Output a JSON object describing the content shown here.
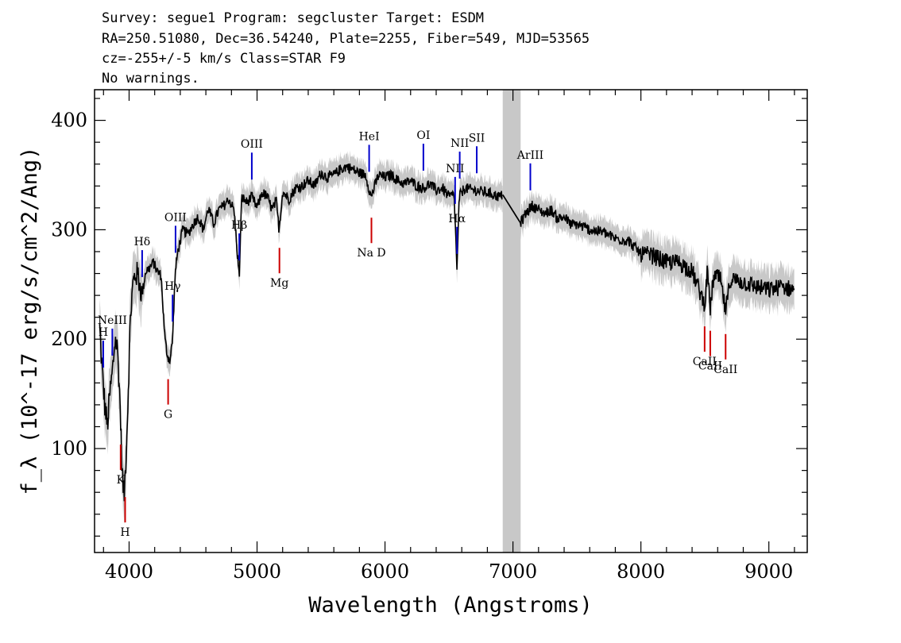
{
  "header": {
    "line1": "Survey: segue1 Program: segcluster Target: ESDM",
    "line2": "RA=250.51080, Dec=36.54240, Plate=2255, Fiber=549, MJD=53565",
    "line3": "cz=-255+/-5 km/s Class=STAR F9",
    "line4": "No warnings."
  },
  "chart_data": {
    "type": "line",
    "xlabel": "Wavelength (Angstroms)",
    "ylabel": "f_λ (10^-17 erg/s/cm^2/Ang)",
    "xlim": [
      3730,
      9300
    ],
    "ylim": [
      5,
      428
    ],
    "x_ticks": [
      4000,
      5000,
      6000,
      7000,
      8000,
      9000
    ],
    "y_ticks": [
      100,
      200,
      300,
      400
    ],
    "masked_region": [
      6920,
      7060
    ],
    "colors": {
      "flux": "#000000",
      "error_band": "#c8c8c8",
      "emission": "#0000cc",
      "absorption": "#cc0000",
      "mask": "#c8c8c8"
    },
    "series": [
      {
        "name": "flux",
        "x": [
          3770,
          3790,
          3810,
          3830,
          3850,
          3870,
          3890,
          3910,
          3930,
          3945,
          3960,
          3975,
          3990,
          4010,
          4030,
          4050,
          4070,
          4101,
          4130,
          4160,
          4190,
          4220,
          4250,
          4280,
          4300,
          4320,
          4340,
          4360,
          4380,
          4420,
          4460,
          4500,
          4540,
          4580,
          4620,
          4660,
          4700,
          4740,
          4780,
          4820,
          4861,
          4880,
          4920,
          4960,
          5000,
          5040,
          5080,
          5120,
          5150,
          5172,
          5200,
          5250,
          5300,
          5350,
          5400,
          5450,
          5500,
          5550,
          5600,
          5650,
          5700,
          5750,
          5800,
          5850,
          5890,
          5950,
          6000,
          6050,
          6100,
          6150,
          6200,
          6250,
          6300,
          6350,
          6400,
          6450,
          6500,
          6540,
          6563,
          6580,
          6620,
          6700,
          6800,
          6900,
          6920,
          7060,
          7100,
          7150,
          7200,
          7250,
          7300,
          7350,
          7400,
          7450,
          7500,
          7600,
          7700,
          7800,
          7900,
          8000,
          8100,
          8200,
          8300,
          8400,
          8498,
          8520,
          8542,
          8570,
          8620,
          8662,
          8700,
          8800,
          8900,
          9000,
          9100,
          9200
        ],
        "values": [
          210,
          170,
          140,
          120,
          150,
          170,
          200,
          190,
          140,
          80,
          55,
          90,
          140,
          220,
          250,
          260,
          258,
          240,
          262,
          265,
          270,
          262,
          258,
          200,
          185,
          180,
          200,
          260,
          280,
          300,
          296,
          305,
          312,
          300,
          320,
          305,
          318,
          322,
          328,
          318,
          256,
          330,
          325,
          330,
          320,
          334,
          330,
          318,
          326,
          300,
          335,
          328,
          338,
          340,
          345,
          340,
          352,
          348,
          350,
          355,
          358,
          355,
          352,
          350,
          330,
          350,
          348,
          350,
          345,
          342,
          345,
          340,
          338,
          342,
          336,
          338,
          330,
          332,
          262,
          330,
          338,
          336,
          334,
          330,
          332,
          306,
          315,
          322,
          318,
          315,
          318,
          310,
          312,
          305,
          305,
          300,
          298,
          292,
          290,
          278,
          276,
          270,
          270,
          262,
          232,
          262,
          228,
          258,
          255,
          225,
          255,
          252,
          248,
          245,
          248,
          245
        ]
      }
    ],
    "annotations": [
      {
        "label": "H",
        "x": 3798,
        "kind": "emission"
      },
      {
        "label": "NeIII",
        "x": 3869,
        "kind": "emission"
      },
      {
        "label": "Hδ",
        "x": 4102,
        "kind": "emission"
      },
      {
        "label": "Hγ",
        "x": 4340,
        "kind": "emission"
      },
      {
        "label": "OIII",
        "x": 4363,
        "kind": "emission"
      },
      {
        "label": "Hβ",
        "x": 4861,
        "kind": "emission"
      },
      {
        "label": "OIII",
        "x": 4959,
        "kind": "emission"
      },
      {
        "label": "HeI",
        "x": 5876,
        "kind": "emission"
      },
      {
        "label": "OI",
        "x": 6300,
        "kind": "emission"
      },
      {
        "label": "NII",
        "x": 6548,
        "kind": "emission"
      },
      {
        "label": "Hα",
        "x": 6563,
        "kind": "emission"
      },
      {
        "label": "NII",
        "x": 6584,
        "kind": "emission"
      },
      {
        "label": "SII",
        "x": 6717,
        "kind": "emission"
      },
      {
        "label": "ArIII",
        "x": 7136,
        "kind": "emission"
      },
      {
        "label": "K",
        "x": 3934,
        "kind": "absorption"
      },
      {
        "label": "H",
        "x": 3969,
        "kind": "absorption"
      },
      {
        "label": "G",
        "x": 4305,
        "kind": "absorption"
      },
      {
        "label": "Mg",
        "x": 5175,
        "kind": "absorption"
      },
      {
        "label": "Na D",
        "x": 5894,
        "kind": "absorption"
      },
      {
        "label": "CaII",
        "x": 8498,
        "kind": "absorption"
      },
      {
        "label": "CaII",
        "x": 8542,
        "kind": "absorption"
      },
      {
        "label": "CaII",
        "x": 8662,
        "kind": "absorption"
      }
    ],
    "grid": false,
    "legend": "none"
  }
}
